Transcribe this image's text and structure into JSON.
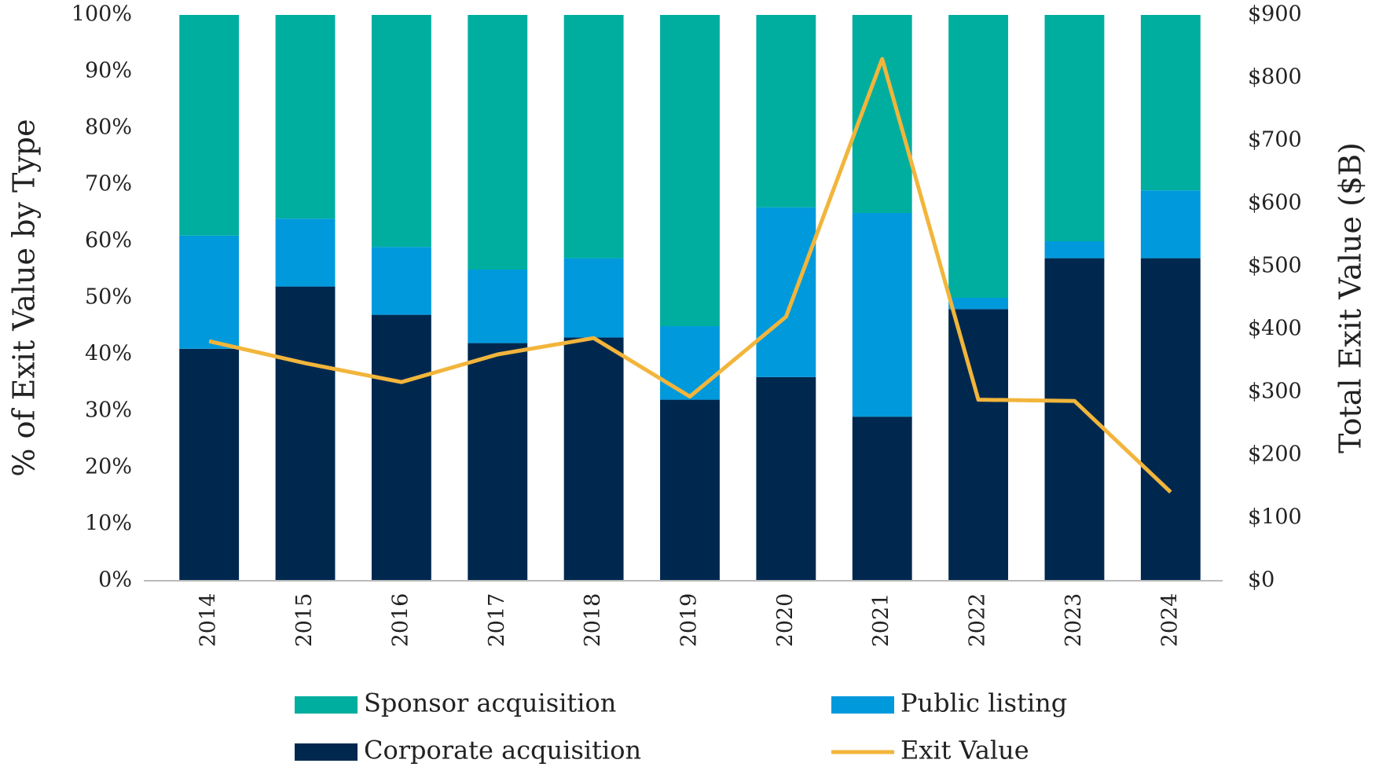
{
  "chart_data": {
    "type": "stacked_bar_line",
    "y_axis_label": "% of Exit Value by Type",
    "y2_axis_label": "Total Exit Value ($B)",
    "categories": [
      "2014",
      "2015",
      "2016",
      "2017",
      "2018",
      "2019",
      "2020",
      "2021",
      "2022",
      "2023",
      "2024"
    ],
    "series": [
      {
        "name": "Corporate acquisition",
        "color": "#00284f",
        "values": [
          41,
          52,
          47,
          42,
          43,
          32,
          36,
          29,
          48,
          57,
          57
        ]
      },
      {
        "name": "Public listing",
        "color": "#0099dc",
        "values": [
          20,
          12,
          12,
          13,
          14,
          13,
          30,
          36,
          2,
          3,
          12
        ]
      },
      {
        "name": "Sponsor acquisition",
        "color": "#00ae9f",
        "values": [
          39,
          36,
          41,
          45,
          43,
          55,
          34,
          35,
          50,
          40,
          31
        ]
      },
      {
        "name": "Exit Value",
        "color": "#f2b53b",
        "axis": "y2",
        "values": [
          381,
          346,
          316,
          360,
          386,
          293,
          420,
          830,
          288,
          286,
          141
        ]
      }
    ],
    "ylim": [
      0,
      100
    ],
    "yticks": [
      {
        "value": 0,
        "label": "0%"
      },
      {
        "value": 10,
        "label": "10%"
      },
      {
        "value": 20,
        "label": "20%"
      },
      {
        "value": 30,
        "label": "30%"
      },
      {
        "value": 40,
        "label": "40%"
      },
      {
        "value": 50,
        "label": "50%"
      },
      {
        "value": 60,
        "label": "60%"
      },
      {
        "value": 70,
        "label": "70%"
      },
      {
        "value": 80,
        "label": "80%"
      },
      {
        "value": 90,
        "label": "90%"
      },
      {
        "value": 100,
        "label": "100%"
      }
    ],
    "y2lim": [
      0,
      900
    ],
    "y2ticks": [
      {
        "value": 0,
        "label": "$0"
      },
      {
        "value": 100,
        "label": "$100"
      },
      {
        "value": 200,
        "label": "$200"
      },
      {
        "value": 300,
        "label": "$300"
      },
      {
        "value": 400,
        "label": "$400"
      },
      {
        "value": 500,
        "label": "$500"
      },
      {
        "value": 600,
        "label": "$600"
      },
      {
        "value": 700,
        "label": "$700"
      },
      {
        "value": 800,
        "label": "$800"
      },
      {
        "value": 900,
        "label": "$900"
      }
    ]
  }
}
